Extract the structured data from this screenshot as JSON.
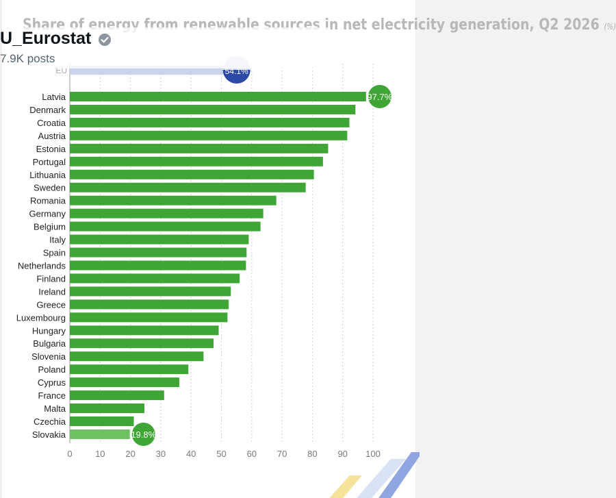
{
  "post": {
    "account_name": "U_Eurostat",
    "post_count": "7.9K posts",
    "verified_icon": "verified-badge-icon"
  },
  "chart_data": {
    "type": "bar",
    "orientation": "horizontal",
    "title": "Share of energy from renewable sources in net electricity generation, Q2 2026",
    "unit": "(%)",
    "xlim": [
      0,
      100
    ],
    "ticks": [
      0,
      10,
      20,
      30,
      40,
      50,
      60,
      70,
      80,
      90,
      100
    ],
    "grid": true,
    "reference": {
      "label": "EU",
      "value": 54.1,
      "display": "54.1%"
    },
    "categories": [
      "Latvia",
      "Denmark",
      "Croatia",
      "Austria",
      "Estonia",
      "Portugal",
      "Lithuania",
      "Sweden",
      "Romania",
      "Germany",
      "Belgium",
      "Italy",
      "Spain",
      "Netherlands",
      "Finland",
      "Ireland",
      "Greece",
      "Luxembourg",
      "Hungary",
      "Bulgaria",
      "Slovenia",
      "Poland",
      "Cyprus",
      "France",
      "Malta",
      "Czechia",
      "Slovakia"
    ],
    "values": [
      97.7,
      94.2,
      92.2,
      91.5,
      85.2,
      83.5,
      80.5,
      77.8,
      68.1,
      63.8,
      62.9,
      59.0,
      58.3,
      58.1,
      56.0,
      53.1,
      52.4,
      52.0,
      49.1,
      47.4,
      44.1,
      39.1,
      36.1,
      31.1,
      24.6,
      21.1,
      19.8
    ],
    "highlights": [
      {
        "category": "Latvia",
        "display": "97.7%"
      },
      {
        "category": "Slovakia",
        "display": "19.8%"
      }
    ],
    "colors": {
      "bar": "#3fa535",
      "bar_light": "#6fbf63",
      "reference": "#c9d3ec",
      "reference_badge": "#2c49a8"
    }
  }
}
